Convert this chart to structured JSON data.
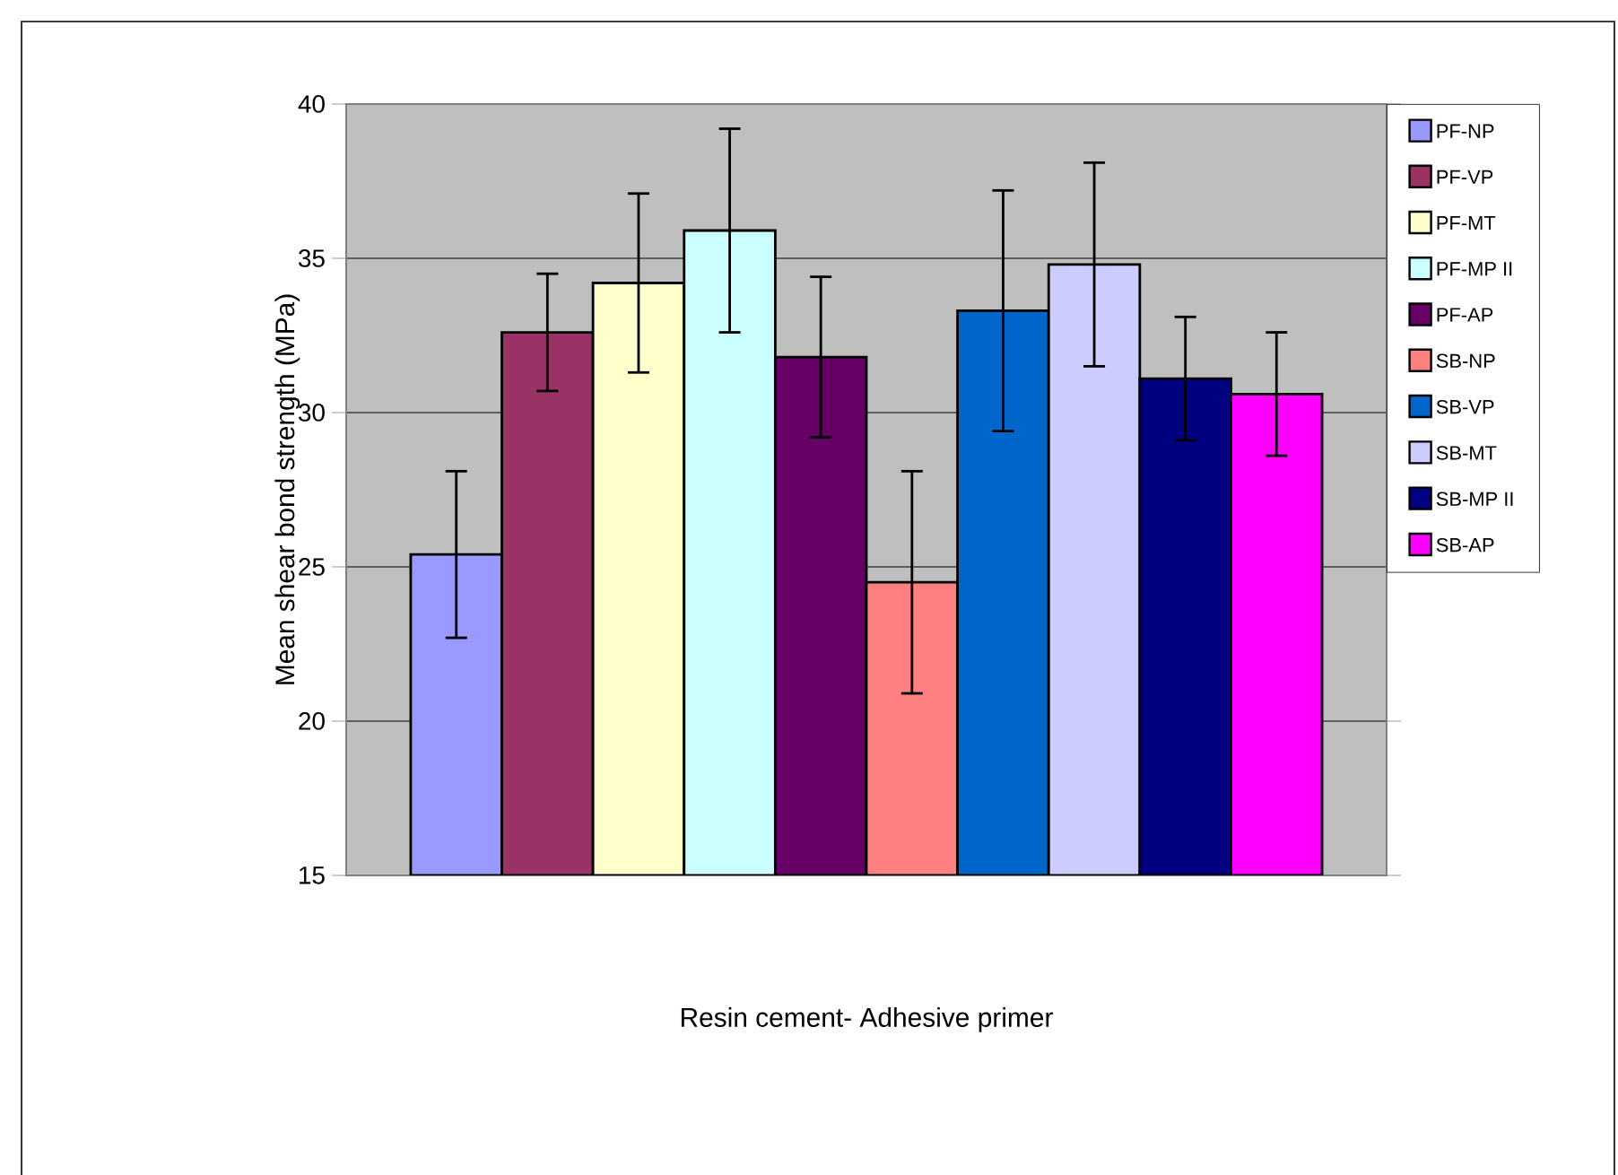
{
  "chart_data": {
    "type": "bar",
    "xlabel": "Resin cement- Adhesive primer",
    "ylabel": "Mean shear bond strength (MPa)",
    "categories": [
      null
    ],
    "ylim": [
      15,
      40
    ],
    "yticks": [
      15,
      20,
      25,
      30,
      35,
      40
    ],
    "grid": "y",
    "legend": "right",
    "series": [
      {
        "name": "PF-NP",
        "color": "#9999ff",
        "values": [
          25.4
        ],
        "errors": [
          2.7
        ]
      },
      {
        "name": "PF-VP",
        "color": "#993366",
        "values": [
          32.6
        ],
        "errors": [
          1.9
        ]
      },
      {
        "name": "PF-MT",
        "color": "#ffffcc",
        "values": [
          34.2
        ],
        "errors": [
          2.9
        ]
      },
      {
        "name": "PF-MP II",
        "color": "#ccffff",
        "values": [
          35.9
        ],
        "errors": [
          3.3
        ]
      },
      {
        "name": "PF-AP",
        "color": "#660066",
        "values": [
          31.8
        ],
        "errors": [
          2.6
        ]
      },
      {
        "name": "SB-NP",
        "color": "#ff8080",
        "values": [
          24.5
        ],
        "errors": [
          3.6
        ]
      },
      {
        "name": "SB-VP",
        "color": "#0066cc",
        "values": [
          33.3
        ],
        "errors": [
          3.9
        ]
      },
      {
        "name": "SB-MT",
        "color": "#ccccff",
        "values": [
          34.8
        ],
        "errors": [
          3.3
        ]
      },
      {
        "name": "SB-MP II",
        "color": "#000080",
        "values": [
          31.1
        ],
        "errors": [
          2.0
        ]
      },
      {
        "name": "SB-AP",
        "color": "#ff00ff",
        "values": [
          30.6
        ],
        "errors": [
          2.0
        ]
      }
    ]
  }
}
